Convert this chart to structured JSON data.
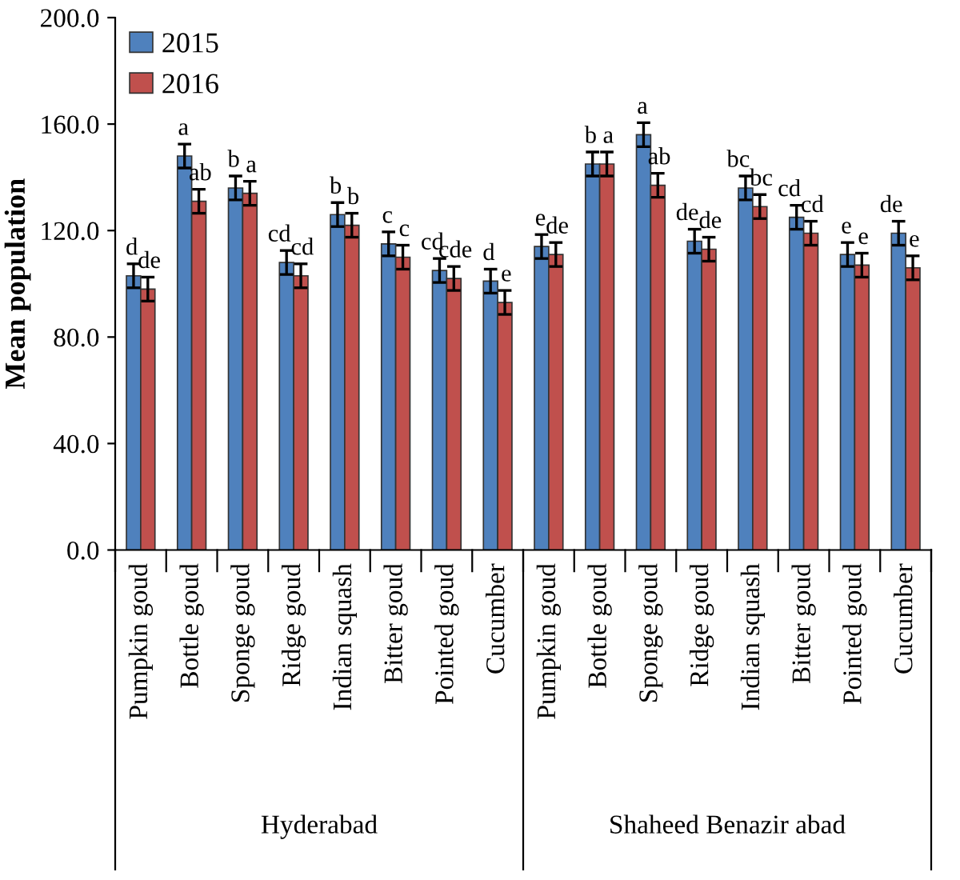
{
  "chart_data": {
    "type": "bar",
    "ylabel": "Mean population",
    "categories": [
      "Pumpkin goud",
      "Bottle goud",
      "Sponge goud",
      "Ridge goud",
      "Indian squash",
      "Bitter goud",
      "Pointed goud",
      "Cucumber",
      "Pumpkin goud",
      "Bottle goud",
      "Sponge goud",
      "Ridge goud",
      "Indian squash",
      "Bitter goud",
      "Pointed goud",
      "Cucumber"
    ],
    "annotations": [
      "Hyderabad",
      "Shaheed Benazir abad"
    ],
    "series": [
      {
        "name": "2015",
        "color": "#4f81bd",
        "values": [
          103,
          148,
          136,
          108,
          126,
          115,
          105,
          101,
          114,
          145,
          156,
          116,
          136,
          125,
          111,
          119
        ],
        "errors": [
          4.5,
          4.5,
          4.5,
          4.5,
          4.5,
          4.5,
          4.5,
          4.5,
          4.5,
          4.5,
          4.5,
          4.5,
          4.5,
          4.5,
          4.5,
          4.5
        ],
        "value_labels": [
          "d",
          "a",
          "b",
          "cd",
          "b",
          "c",
          "cd",
          "d",
          "e",
          "b",
          "a",
          "de",
          "bc",
          "cd",
          "e",
          "de"
        ]
      },
      {
        "name": "2016",
        "color": "#c0504d",
        "values": [
          98,
          131,
          134,
          103,
          122,
          110,
          102,
          93,
          111,
          145,
          137,
          113,
          129,
          119,
          107,
          106
        ],
        "errors": [
          4.5,
          4.5,
          4.5,
          4.5,
          4.5,
          4.5,
          4.5,
          4.5,
          4.5,
          4.5,
          4.5,
          4.5,
          4.5,
          4.5,
          4.5,
          4.5
        ],
        "value_labels": [
          "de",
          "ab",
          "a",
          "cd",
          "b",
          "c",
          "cde",
          "e",
          "de",
          "a",
          "ab",
          "de",
          "bc",
          "cd",
          "e",
          "e"
        ]
      }
    ],
    "ylim": [
      0,
      200
    ],
    "yticks": [
      {
        "value": 0,
        "label": "0.0"
      },
      {
        "value": 40,
        "label": "40.0"
      },
      {
        "value": 80,
        "label": "80.0"
      },
      {
        "value": 120,
        "label": "120.0"
      },
      {
        "value": 160,
        "label": "160.0"
      },
      {
        "value": 200,
        "label": "200.0"
      }
    ],
    "grid": false,
    "legend": "top left"
  }
}
